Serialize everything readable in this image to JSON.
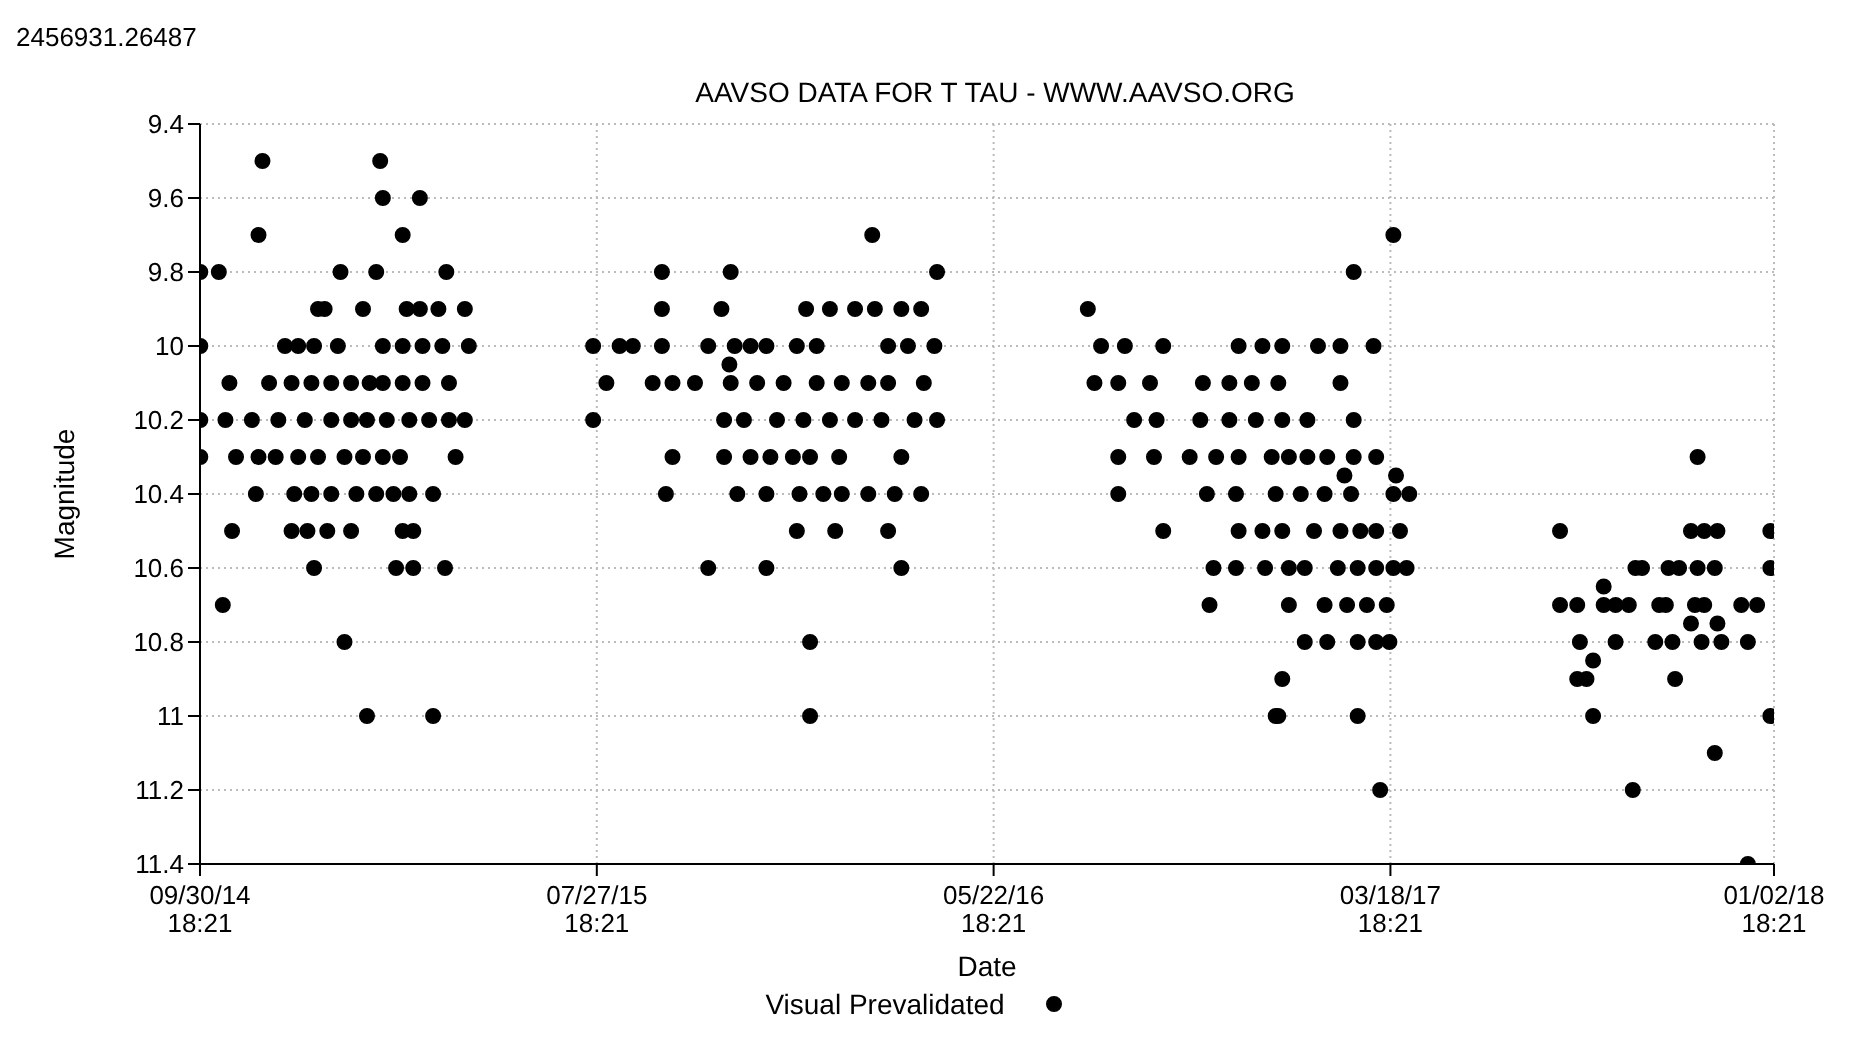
{
  "chart_data": {
    "type": "scatter",
    "title": "AAVSO DATA FOR T TAU - WWW.AAVSO.ORG",
    "xlabel": "Date",
    "ylabel": "Magnitude",
    "annotations": [
      "2456931.26487"
    ],
    "xlim": [
      "2014-09-30T18:21",
      "2018-01-02T18:21"
    ],
    "xticks": [
      {
        "value": "2014-09-30T18:21",
        "label": "09/30/14\n18:21"
      },
      {
        "value": "2015-07-27T18:21",
        "label": "07/27/15\n18:21"
      },
      {
        "value": "2016-05-22T18:21",
        "label": "05/22/16\n18:21"
      },
      {
        "value": "2017-03-18T18:21",
        "label": "03/18/17\n18:21"
      },
      {
        "value": "2018-01-02T18:21",
        "label": "01/02/18\n18:21"
      }
    ],
    "ylim": [
      11.4,
      9.4
    ],
    "yticks": [
      9.4,
      9.6,
      9.8,
      10,
      10.2,
      10.4,
      10.6,
      10.8,
      11,
      11.2,
      11.4
    ],
    "grid": true,
    "legend": "bottom",
    "marker": "circle",
    "series": [
      {
        "name": "Visual Prevalidated",
        "color": "#000000",
        "x": [
          "2014-10-01",
          "2014-10-15",
          "2014-10-01",
          "2014-10-01",
          "2014-10-01",
          "2014-10-18",
          "2014-10-25",
          "2014-10-23",
          "2014-10-20",
          "2014-10-28",
          "2014-11-12",
          "2014-11-14",
          "2014-11-17",
          "2014-11-22",
          "2014-12-04",
          "2014-12-14",
          "2014-12-29",
          "2015-01-03",
          "2014-12-26",
          "2015-01-13",
          "2015-01-15",
          "2014-12-09",
          "2014-12-24",
          "2015-01-08",
          "2015-01-23",
          "2015-02-06",
          "2015-02-16",
          "2014-11-09",
          "2014-11-29",
          "2014-12-19",
          "2015-01-08",
          "2015-01-23",
          "2015-02-04",
          "2014-11-14",
          "2014-11-27",
          "2014-12-14",
          "2014-12-29",
          "2015-01-18",
          "2015-02-01",
          "2015-02-16",
          "2014-12-11",
          "2014-12-24",
          "2015-01-08",
          "2015-01-27",
          "2015-02-11",
          "2015-02-24",
          "2015-03-08",
          "2015-03-26",
          "2014-12-09",
          "2014-12-21",
          "2015-01-05",
          "2015-01-23",
          "2015-03-03",
          "2015-03-11",
          "2014-12-26",
          "2015-02-26",
          "2015-03-11",
          "2015-04-04",
          "2015-01-18",
          "2015-02-04",
          "2015-03-26",
          "2015-02-01",
          "2015-02-11",
          "2015-02-14",
          "2015-02-16",
          "2015-03-16",
          "2015-03-03",
          "2015-03-06",
          "2015-03-16",
          "2015-03-30",
          "2015-04-19",
          "2015-04-05",
          "2015-02-16",
          "2015-03-03",
          "2015-03-18",
          "2015-04-02",
          "2015-04-22",
          "2015-03-03",
          "2015-03-18",
          "2015-04-07",
          "2015-02-19",
          "2015-03-08",
          "2015-03-23",
          "2015-04-07",
          "2015-04-19",
          "2015-04-12",
          "2015-03-01",
          "2015-07-25",
          "2015-08-14",
          "2015-08-24",
          "2015-09-15",
          "2015-10-20",
          "2015-11-09",
          "2015-11-21",
          "2015-12-03",
          "2015-12-26",
          "2016-01-10",
          "2016-03-04",
          "2016-03-19",
          "2016-04-08",
          "2015-08-04",
          "2015-09-08",
          "2015-09-23",
          "2015-10-10",
          "2015-11-06",
          "2015-11-26",
          "2015-12-16",
          "2016-01-10",
          "2016-01-29",
          "2016-02-18",
          "2016-03-04",
          "2016-03-31",
          "2015-11-05",
          "2015-07-25",
          "2015-11-01",
          "2015-11-16",
          "2015-12-11",
          "2015-12-31",
          "2016-01-20",
          "2016-02-08",
          "2016-02-28",
          "2016-03-24",
          "2016-04-10",
          "2015-09-23",
          "2015-11-01",
          "2015-11-21",
          "2015-12-06",
          "2015-12-23",
          "2016-01-05",
          "2016-01-27",
          "2016-03-14",
          "2015-09-18",
          "2015-11-11",
          "2015-12-03",
          "2015-12-28",
          "2016-01-15",
          "2016-01-29",
          "2016-02-18",
          "2016-03-09",
          "2016-03-29",
          "2015-12-26",
          "2016-01-24",
          "2016-03-04",
          "2015-10-20",
          "2015-12-03",
          "2016-03-14",
          "2016-01-05",
          "2016-01-05",
          "2015-09-15",
          "2015-11-06",
          "2016-04-10",
          "2015-09-15",
          "2015-10-30",
          "2016-01-02",
          "2016-01-20",
          "2016-02-08",
          "2016-02-23",
          "2016-03-14",
          "2016-03-29",
          "2016-02-21",
          "2016-08-02",
          "2016-08-12",
          "2016-08-30",
          "2016-09-28",
          "2016-11-24",
          "2016-12-12",
          "2016-12-27",
          "2017-01-23",
          "2017-02-09",
          "2017-03-06",
          "2016-08-07",
          "2016-08-25",
          "2016-09-18",
          "2016-10-28",
          "2016-11-17",
          "2016-12-04",
          "2016-12-24",
          "2017-02-09",
          "2016-09-06",
          "2016-09-23",
          "2016-10-26",
          "2016-11-17",
          "2016-12-07",
          "2016-12-27",
          "2017-01-15",
          "2017-02-19",
          "2016-08-25",
          "2016-09-21",
          "2016-10-18",
          "2016-11-07",
          "2016-11-24",
          "2016-12-19",
          "2017-01-01",
          "2017-01-15",
          "2017-01-30",
          "2017-02-19",
          "2017-03-08",
          "2017-02-12",
          "2017-03-23",
          "2016-08-25",
          "2016-10-31",
          "2016-11-22",
          "2016-12-22",
          "2017-01-10",
          "2017-01-28",
          "2017-02-17",
          "2017-03-21",
          "2017-04-02",
          "2016-09-28",
          "2016-11-24",
          "2016-12-12",
          "2016-12-27",
          "2017-01-20",
          "2017-02-09",
          "2017-02-24",
          "2017-03-08",
          "2017-03-26",
          "2016-11-05",
          "2016-11-22",
          "2016-12-14",
          "2017-01-01",
          "2017-01-13",
          "2017-02-07",
          "2017-02-22",
          "2017-03-08",
          "2017-03-21",
          "2017-03-31",
          "2016-11-02",
          "2017-01-01",
          "2017-01-28",
          "2017-02-14",
          "2017-03-01",
          "2017-03-16",
          "2017-01-13",
          "2017-01-30",
          "2017-02-22",
          "2017-03-08",
          "2017-03-18",
          "2016-12-27",
          "2016-12-22",
          "2016-12-24",
          "2017-02-22",
          "2017-03-11",
          "2017-02-19",
          "2017-03-21",
          "2017-07-25",
          "2017-07-25",
          "2017-08-07",
          "2017-08-27",
          "2017-08-27",
          "2017-09-05",
          "2017-09-15",
          "2017-08-09",
          "2017-08-19",
          "2017-08-07",
          "2017-08-14",
          "2017-08-19",
          "2017-09-05",
          "2017-09-20",
          "2017-09-25",
          "2017-09-18",
          "2017-10-08",
          "2017-10-13",
          "2017-10-05",
          "2017-10-18",
          "2017-10-15",
          "2017-10-23",
          "2017-10-20",
          "2017-11-01",
          "2017-11-11",
          "2017-11-21",
          "2017-11-06",
          "2017-11-06",
          "2017-11-19",
          "2017-11-04",
          "2017-11-11",
          "2017-11-01",
          "2017-11-21",
          "2017-11-09",
          "2017-11-24",
          "2017-11-19",
          "2017-12-09",
          "2017-12-21",
          "2017-12-14",
          "2017-12-31",
          "2017-12-31",
          "2017-12-31",
          "2017-12-14"
        ],
        "values": [
          9.8,
          9.8,
          10,
          10.2,
          10.3,
          10.7,
          10.5,
          10.1,
          10.2,
          10.3,
          10.4,
          9.7,
          9.5,
          10.1,
          10,
          10,
          9.9,
          9.9,
          10,
          10,
          9.8,
          10.1,
          10.1,
          10.1,
          10.1,
          10.1,
          10.1,
          10.2,
          10.2,
          10.2,
          10.2,
          10.2,
          10.2,
          10.3,
          10.3,
          10.3,
          10.3,
          10.3,
          10.3,
          10.3,
          10.4,
          10.4,
          10.4,
          10.4,
          10.4,
          10.4,
          10.4,
          10.4,
          10.5,
          10.5,
          10.5,
          10.5,
          10.5,
          10.5,
          10.6,
          10.6,
          10.6,
          10.6,
          10.8,
          11,
          11,
          9.9,
          9.8,
          9.5,
          9.6,
          9.6,
          9.7,
          9.9,
          9.9,
          9.9,
          9.9,
          9.8,
          10,
          10,
          10,
          10,
          10,
          10.1,
          10.1,
          10.1,
          10.2,
          10.2,
          10.2,
          10.2,
          10.2,
          10.3,
          10.3,
          10,
          10,
          10,
          10,
          10,
          10,
          10,
          10,
          10,
          10,
          10,
          10,
          10,
          10.1,
          10.1,
          10.1,
          10.1,
          10.1,
          10.1,
          10.1,
          10.1,
          10.1,
          10.1,
          10.1,
          10.1,
          10.05,
          10.2,
          10.2,
          10.2,
          10.2,
          10.2,
          10.2,
          10.2,
          10.2,
          10.2,
          10.2,
          10.3,
          10.3,
          10.3,
          10.3,
          10.3,
          10.3,
          10.3,
          10.3,
          10.4,
          10.4,
          10.4,
          10.4,
          10.4,
          10.4,
          10.4,
          10.4,
          10.4,
          10.5,
          10.5,
          10.5,
          10.6,
          10.6,
          10.6,
          10.8,
          11,
          9.8,
          9.8,
          9.8,
          9.9,
          9.9,
          9.9,
          9.9,
          9.9,
          9.9,
          9.9,
          9.9,
          9.7,
          9.9,
          10,
          10,
          10,
          10,
          10,
          10,
          10,
          10,
          10,
          10.1,
          10.1,
          10.1,
          10.1,
          10.1,
          10.1,
          10.1,
          10.1,
          10.2,
          10.2,
          10.2,
          10.2,
          10.2,
          10.2,
          10.2,
          10.2,
          10.3,
          10.3,
          10.3,
          10.3,
          10.3,
          10.3,
          10.3,
          10.3,
          10.3,
          10.3,
          10.3,
          10.35,
          10.35,
          10.4,
          10.4,
          10.4,
          10.4,
          10.4,
          10.4,
          10.4,
          10.4,
          10.4,
          10.5,
          10.5,
          10.5,
          10.5,
          10.5,
          10.5,
          10.5,
          10.5,
          10.5,
          10.6,
          10.6,
          10.6,
          10.6,
          10.6,
          10.6,
          10.6,
          10.6,
          10.6,
          10.6,
          10.7,
          10.7,
          10.7,
          10.7,
          10.7,
          10.7,
          10.8,
          10.8,
          10.8,
          10.8,
          10.8,
          10.9,
          11,
          11,
          11,
          11.2,
          9.8,
          9.7,
          10.5,
          10.7,
          10.7,
          10.65,
          10.7,
          10.7,
          10.7,
          10.8,
          10.85,
          10.9,
          10.9,
          11,
          10.8,
          10.6,
          10.6,
          11.2,
          10.7,
          10.7,
          10.8,
          10.8,
          10.6,
          10.6,
          10.9,
          10.5,
          10.5,
          10.5,
          10.3,
          10.6,
          10.6,
          10.7,
          10.7,
          10.75,
          10.75,
          10.8,
          10.8,
          11.1,
          10.7,
          10.7,
          10.8,
          10.5,
          10.6,
          11,
          11.4
        ]
      }
    ]
  }
}
